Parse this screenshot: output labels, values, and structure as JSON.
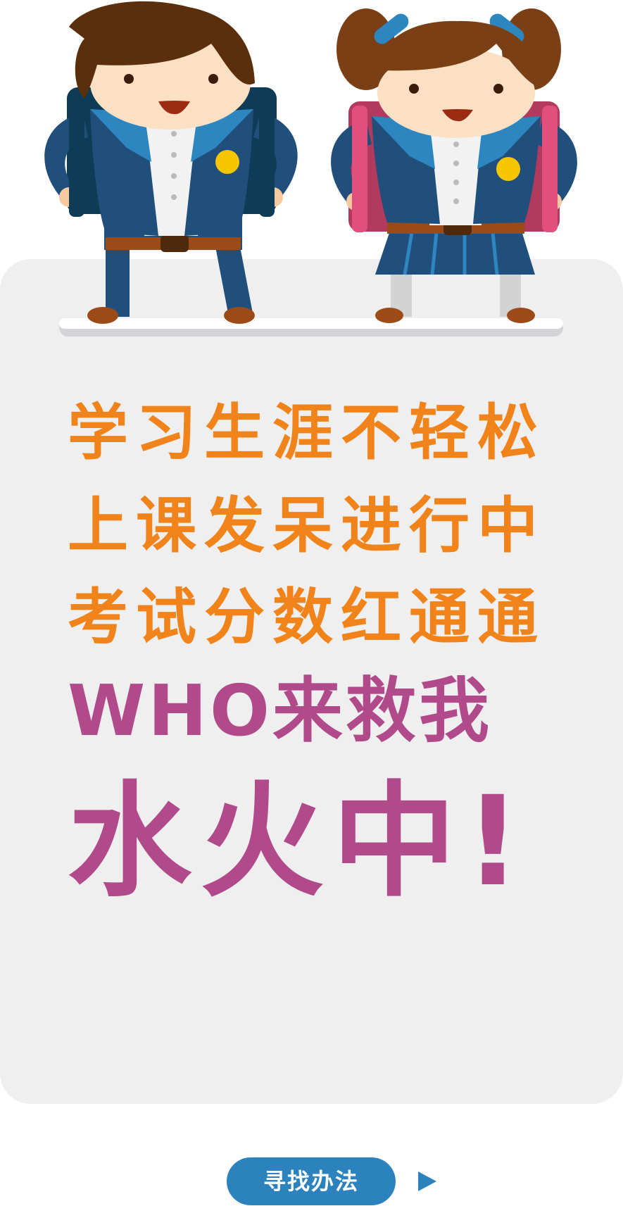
{
  "headline": {
    "line1": "学习生涯不轻松",
    "line2": "上课发呆进行中",
    "line3": "考试分数红通通",
    "line4": "WHO来救我",
    "line5": "水火中!"
  },
  "cta": {
    "label": "寻找办法"
  },
  "icons": {
    "hero_illustration": "boy-and-girl-students-icon",
    "next_arrow": "play-arrow-icon"
  },
  "colors": {
    "card_background": "#efefef",
    "orange_text": "#f0831a",
    "magenta_text": "#b04a8a",
    "button_blue": "#2b82bd"
  }
}
